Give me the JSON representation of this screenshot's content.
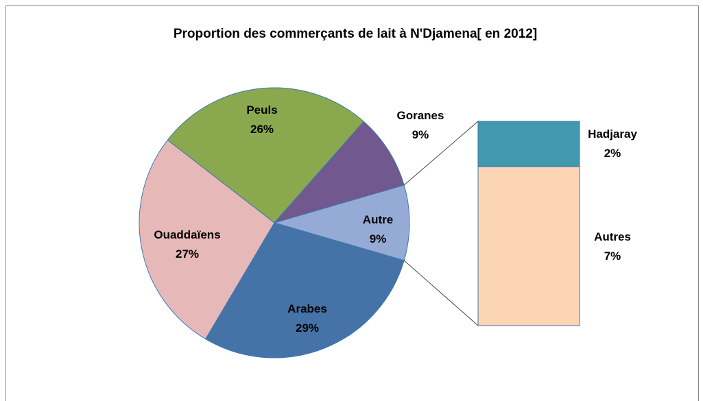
{
  "chart_data": {
    "type": "pie",
    "title": "Proportion des commerçants de lait à N'Djamena[ en 2012]",
    "categories": [
      "Autre",
      "Arabes",
      "Ouaddaïens",
      "Peuls",
      "Goranes"
    ],
    "values": [
      9,
      29,
      27,
      26,
      9
    ],
    "value_labels": [
      "9%",
      "29%",
      "27%",
      "26%",
      "9%"
    ],
    "colors": [
      "#95abd5",
      "#4572a7",
      "#e6b9b8",
      "#8aa84e",
      "#71588f"
    ],
    "secondary": {
      "type": "bar",
      "categories": [
        "Hadjaray",
        "Autres"
      ],
      "values": [
        2,
        7
      ],
      "value_labels": [
        "2%",
        "7%"
      ],
      "colors": [
        "#4198af",
        "#fcd5b5"
      ]
    }
  }
}
